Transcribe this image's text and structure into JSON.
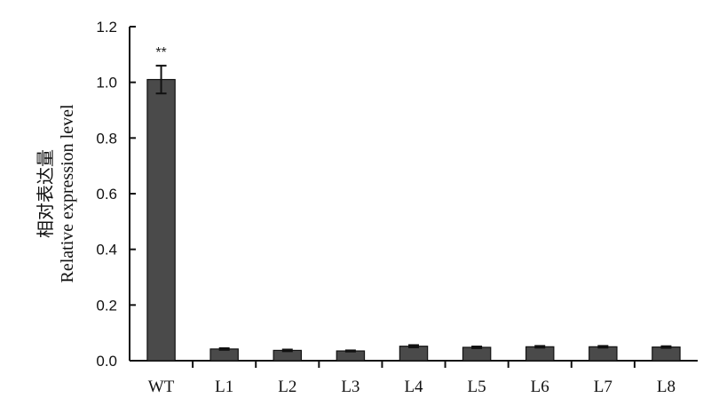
{
  "chart_data": {
    "type": "bar",
    "title": "",
    "xlabel": "",
    "ylabel_lines": [
      "相对表达量",
      "Relative expression level"
    ],
    "categories": [
      "WT",
      "L1",
      "L2",
      "L3",
      "L4",
      "L5",
      "L6",
      "L7",
      "L8"
    ],
    "values": [
      1.01,
      0.042,
      0.037,
      0.035,
      0.052,
      0.048,
      0.05,
      0.05,
      0.049
    ],
    "errors": [
      0.05,
      0.003,
      0.003,
      0.002,
      0.004,
      0.003,
      0.003,
      0.003,
      0.003
    ],
    "annotations": [
      {
        "category": "WT",
        "text": "**"
      }
    ],
    "ylim": [
      0,
      1.2
    ],
    "yticks": [
      0,
      0.2,
      0.4,
      0.6,
      0.8,
      1.0,
      1.2
    ],
    "ytick_labels": [
      "0.0",
      "0.2",
      "0.4",
      "0.6",
      "0.8",
      "1.0",
      "1.2"
    ],
    "bar_color": "#4a4a4a",
    "grid": false,
    "legend": "none"
  }
}
